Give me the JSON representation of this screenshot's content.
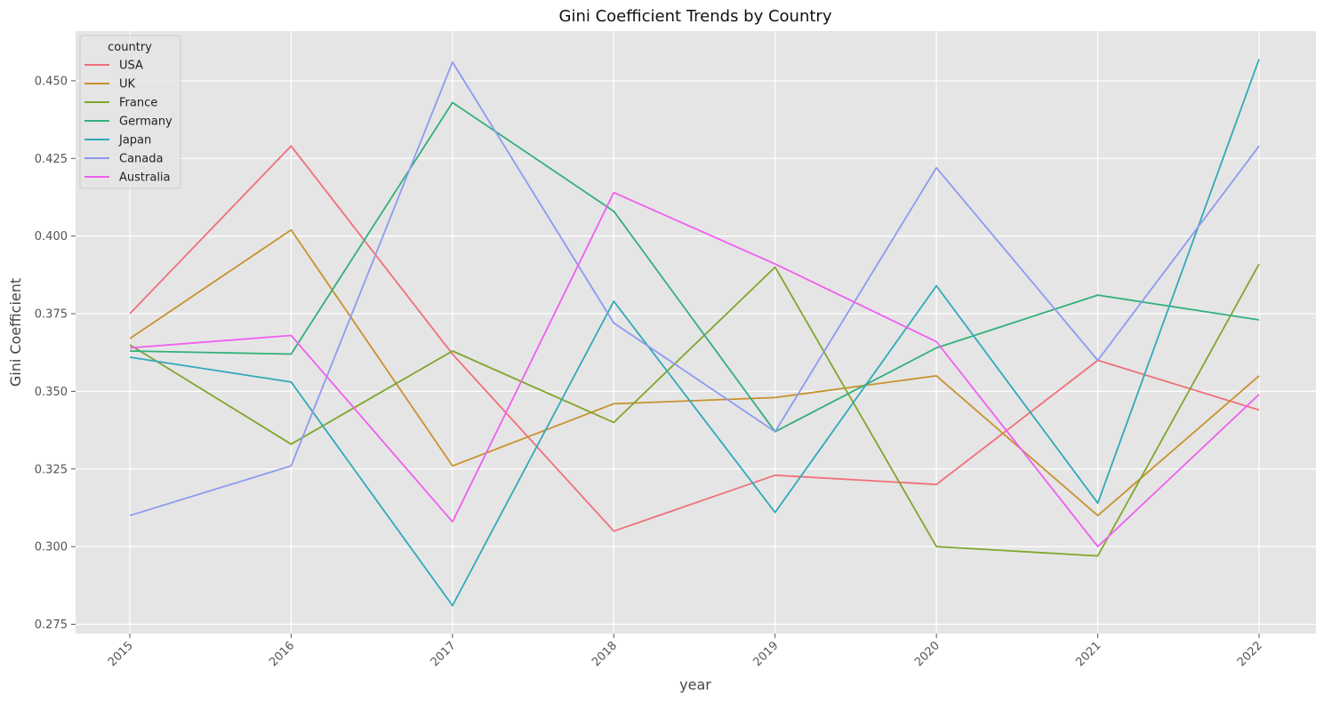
{
  "chart_data": {
    "type": "line",
    "title": "Gini Coefficient Trends by Country",
    "xlabel": "year",
    "ylabel": "Gini Coefficient",
    "x": [
      "2015",
      "2016",
      "2017",
      "2018",
      "2019",
      "2020",
      "2021",
      "2022"
    ],
    "ylim": [
      0.272,
      0.466
    ],
    "yticks": [
      "0.275",
      "0.300",
      "0.325",
      "0.350",
      "0.375",
      "0.400",
      "0.425",
      "0.450"
    ],
    "grid": true,
    "legend": {
      "title": "country",
      "position": "top-left"
    },
    "series": [
      {
        "name": "USA",
        "color": "#f0707a",
        "values": [
          0.375,
          0.429,
          0.362,
          0.305,
          0.323,
          0.32,
          0.36,
          0.344
        ]
      },
      {
        "name": "UK",
        "color": "#c8922e",
        "values": [
          0.367,
          0.402,
          0.326,
          0.346,
          0.348,
          0.355,
          0.31,
          0.355
        ]
      },
      {
        "name": "France",
        "color": "#80a62c",
        "values": [
          0.365,
          0.333,
          0.363,
          0.34,
          0.39,
          0.3,
          0.297,
          0.391
        ]
      },
      {
        "name": "Germany",
        "color": "#32b07b",
        "values": [
          0.363,
          0.362,
          0.443,
          0.408,
          0.337,
          0.364,
          0.381,
          0.373
        ]
      },
      {
        "name": "Japan",
        "color": "#31aab8",
        "values": [
          0.361,
          0.353,
          0.281,
          0.379,
          0.311,
          0.384,
          0.314,
          0.457
        ]
      },
      {
        "name": "Canada",
        "color": "#8d9af0",
        "values": [
          0.31,
          0.326,
          0.456,
          0.372,
          0.337,
          0.422,
          0.36,
          0.429
        ]
      },
      {
        "name": "Australia",
        "color": "#f15ef0",
        "values": [
          0.364,
          0.368,
          0.308,
          0.414,
          0.391,
          0.366,
          0.3,
          0.349
        ]
      }
    ]
  }
}
